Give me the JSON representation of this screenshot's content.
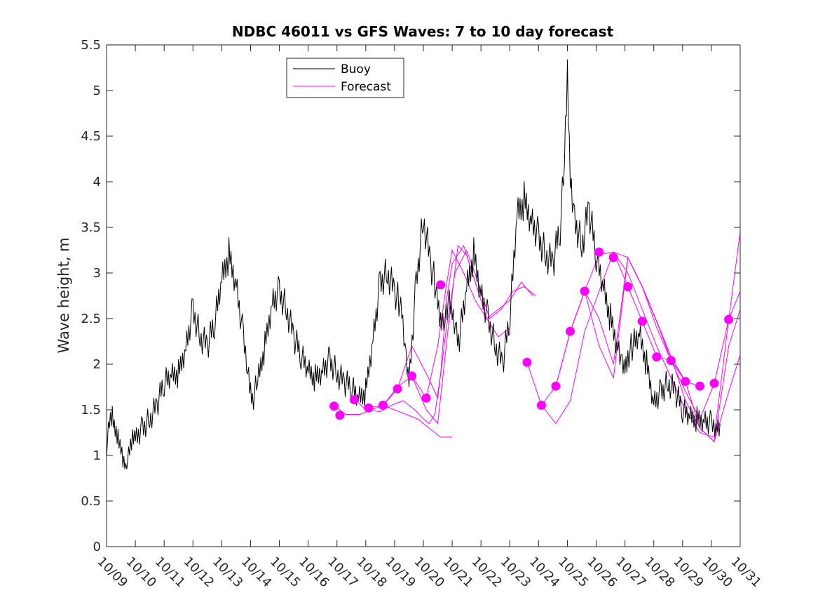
{
  "chart_data": {
    "type": "line",
    "title": "NDBC 46011 vs GFS Waves: 7 to 10 day forecast",
    "xlabel": "",
    "ylabel": "Wave height, m",
    "x_unit": "days since 10/09",
    "xlim": [
      0,
      22
    ],
    "ylim": [
      0,
      5.5
    ],
    "x_tick_labels": [
      "10/09",
      "10/10",
      "10/11",
      "10/12",
      "10/13",
      "10/14",
      "10/15",
      "10/16",
      "10/17",
      "10/18",
      "10/19",
      "10/20",
      "10/21",
      "10/22",
      "10/23",
      "10/24",
      "10/25",
      "10/26",
      "10/27",
      "10/28",
      "10/29",
      "10/30",
      "10/31"
    ],
    "y_ticks": [
      0,
      0.5,
      1,
      1.5,
      2,
      2.5,
      3,
      3.5,
      4,
      4.5,
      5,
      5.5
    ],
    "y_tick_labels": [
      "0",
      "0.5",
      "1",
      "1.5",
      "2",
      "2.5",
      "3",
      "3.5",
      "4",
      "4.5",
      "5",
      "5.5"
    ],
    "legend": {
      "location": "top-left",
      "entries": [
        "Buoy",
        "Forecast"
      ]
    },
    "colors": {
      "buoy": "#000000",
      "forecast": "#ff00ff"
    },
    "series": [
      {
        "name": "Buoy",
        "x": [
          0,
          0.1,
          0.2,
          0.3,
          0.4,
          0.5,
          0.6,
          0.7,
          0.8,
          0.9,
          1.0,
          1.25,
          1.5,
          1.75,
          2.0,
          2.25,
          2.5,
          2.75,
          3.0,
          3.25,
          3.5,
          3.75,
          4.0,
          4.25,
          4.5,
          4.75,
          4.9,
          5.0,
          5.1,
          5.25,
          5.5,
          5.75,
          6.0,
          6.25,
          6.5,
          6.75,
          7.0,
          7.25,
          7.5,
          7.75,
          8.0,
          8.25,
          8.5,
          8.75,
          9.0,
          9.25,
          9.5,
          9.75,
          10.0,
          10.15,
          10.25,
          10.4,
          10.5,
          10.75,
          11.0,
          11.25,
          11.4,
          11.5,
          11.6,
          11.75,
          11.9,
          12.0,
          12.15,
          12.25,
          12.5,
          12.75,
          13.0,
          13.25,
          13.5,
          13.75,
          14.0,
          14.25,
          14.5,
          14.75,
          15.0,
          15.25,
          15.5,
          15.75,
          15.9,
          16.0,
          16.1,
          16.25,
          16.5,
          16.75,
          17.0,
          17.25,
          17.5,
          17.75,
          17.9,
          18.0,
          18.1,
          18.25,
          18.5,
          18.75,
          19.0,
          19.25,
          19.5,
          19.75,
          20.0,
          20.25,
          20.5,
          20.75,
          21.0,
          21.2,
          21.3
        ],
        "y": [
          1.1,
          1.3,
          1.4,
          1.25,
          1.2,
          1.1,
          0.95,
          0.9,
          1.0,
          1.15,
          1.2,
          1.3,
          1.4,
          1.55,
          1.8,
          1.85,
          1.9,
          2.2,
          2.6,
          2.3,
          2.2,
          2.45,
          2.9,
          3.2,
          2.9,
          2.3,
          2.0,
          1.75,
          1.65,
          1.8,
          2.2,
          2.7,
          2.8,
          2.6,
          2.3,
          2.1,
          1.9,
          1.85,
          1.95,
          2.05,
          1.9,
          1.8,
          1.75,
          1.6,
          1.7,
          2.3,
          2.9,
          3.0,
          2.8,
          2.7,
          2.5,
          2.0,
          1.8,
          2.9,
          3.6,
          3.1,
          2.9,
          2.6,
          2.4,
          2.5,
          2.7,
          2.6,
          2.4,
          2.3,
          2.8,
          3.2,
          2.8,
          2.5,
          2.2,
          2.0,
          2.5,
          3.6,
          3.8,
          3.6,
          3.4,
          3.2,
          3.1,
          3.5,
          4.2,
          5.1,
          4.0,
          3.6,
          3.3,
          3.7,
          3.2,
          2.8,
          2.5,
          2.2,
          2.0,
          2.0,
          2.1,
          2.2,
          2.3,
          2.0,
          1.6,
          1.7,
          1.8,
          1.7,
          1.5,
          1.4,
          1.4,
          1.4,
          1.35,
          1.35,
          1.35
        ]
      },
      {
        "name": "Forecast",
        "x": [
          7.9,
          8.3,
          8.8,
          9.2,
          9.6,
          10.0,
          10.4,
          10.8,
          11.2,
          11.6,
          12.0
        ],
        "y": [
          1.55,
          1.45,
          1.45,
          1.5,
          1.55,
          1.5,
          1.45,
          1.4,
          1.3,
          1.2,
          1.2
        ]
      },
      {
        "name": "Forecast",
        "x": [
          8.6,
          9.0,
          9.5,
          9.9,
          10.3,
          10.7,
          11.0,
          11.2,
          11.4,
          11.6,
          11.8,
          12.0,
          12.2,
          12.4,
          12.6,
          12.8,
          13.0
        ],
        "y": [
          1.62,
          1.5,
          1.48,
          1.55,
          1.6,
          1.5,
          1.4,
          1.35,
          1.45,
          1.9,
          2.7,
          3.1,
          3.2,
          3.3,
          3.1,
          2.9,
          2.7
        ]
      },
      {
        "name": "Forecast",
        "x": [
          9.1,
          9.6,
          10.1,
          10.6,
          11.1,
          11.5,
          11.9,
          12.2,
          12.5,
          12.8,
          13.2,
          13.6,
          14.0
        ],
        "y": [
          1.52,
          1.55,
          1.75,
          1.87,
          1.5,
          1.35,
          2.5,
          3.3,
          3.2,
          2.9,
          2.5,
          2.3,
          2.4
        ]
      },
      {
        "name": "Forecast",
        "x": [
          9.6,
          10.1,
          10.6,
          11.1,
          11.5,
          11.8,
          12.1,
          12.5,
          12.9,
          13.3,
          13.7,
          14.1,
          14.5,
          14.9
        ],
        "y": [
          1.55,
          1.73,
          2.2,
          1.9,
          1.63,
          2.4,
          3.0,
          3.25,
          2.9,
          2.5,
          2.6,
          2.8,
          2.85,
          2.75
        ]
      },
      {
        "name": "Forecast",
        "x": [
          10.6,
          11.1,
          11.5,
          11.8,
          12.0,
          12.4,
          12.8,
          13.2,
          13.6,
          14.0,
          14.4,
          14.8
        ],
        "y": [
          1.87,
          1.63,
          2.2,
          2.87,
          3.25,
          3.0,
          2.7,
          2.5,
          2.6,
          2.7,
          2.9,
          2.75
        ]
      },
      {
        "name": "Forecast",
        "x": [
          14.6,
          15.1,
          15.6,
          16.1,
          16.6,
          17.1,
          17.6,
          18.1,
          18.6,
          19.1
        ],
        "y": [
          2.02,
          1.55,
          1.35,
          1.6,
          2.36,
          2.8,
          3.23,
          3.17,
          2.85,
          2.47
        ]
      },
      {
        "name": "Forecast",
        "x": [
          15.1,
          15.6,
          16.1,
          16.6,
          17.1,
          17.6,
          18.1,
          18.6,
          19.1,
          19.6
        ],
        "y": [
          1.55,
          1.76,
          2.36,
          2.8,
          3.2,
          3.23,
          2.85,
          2.47,
          2.08,
          2.04
        ]
      },
      {
        "name": "Forecast",
        "x": [
          15.6,
          16.1,
          16.6,
          17.1,
          17.6,
          18.1,
          18.6,
          19.1,
          19.6,
          20.1
        ],
        "y": [
          1.76,
          2.36,
          2.8,
          2.5,
          2.0,
          3.17,
          2.85,
          2.47,
          2.08,
          1.8
        ]
      },
      {
        "name": "Forecast",
        "x": [
          16.1,
          16.6,
          17.1,
          17.6,
          18.1,
          18.6,
          19.1,
          19.6,
          20.1,
          20.6
        ],
        "y": [
          2.36,
          2.8,
          2.2,
          1.85,
          3.17,
          2.85,
          2.47,
          2.04,
          1.81,
          1.76
        ]
      },
      {
        "name": "Forecast",
        "x": [
          17.6,
          18.1,
          18.6,
          19.1,
          19.6,
          20.1,
          20.6,
          21.1,
          21.6,
          22.0
        ],
        "y": [
          3.23,
          3.0,
          2.6,
          2.2,
          1.85,
          1.5,
          1.25,
          1.2,
          2.49,
          3.45
        ]
      },
      {
        "name": "Forecast",
        "x": [
          18.1,
          18.6,
          19.1,
          19.6,
          20.1,
          20.6,
          21.1,
          21.6,
          22.0
        ],
        "y": [
          3.17,
          2.85,
          2.4,
          2.04,
          1.7,
          1.4,
          1.79,
          2.49,
          2.8
        ]
      },
      {
        "name": "Forecast",
        "x": [
          18.6,
          19.1,
          19.6,
          20.1,
          20.6,
          21.1,
          21.6,
          22.0
        ],
        "y": [
          2.85,
          2.47,
          2.08,
          1.81,
          1.3,
          1.15,
          2.2,
          2.6
        ]
      },
      {
        "name": "Forecast",
        "x": [
          19.1,
          19.6,
          20.1,
          20.6,
          21.1,
          21.6,
          22.0
        ],
        "y": [
          2.47,
          2.08,
          1.6,
          1.3,
          1.15,
          1.7,
          2.1
        ]
      }
    ],
    "markers": {
      "name": "Forecast",
      "x": [
        7.9,
        8.1,
        8.6,
        9.1,
        9.6,
        10.1,
        10.6,
        11.1,
        11.6,
        14.6,
        15.1,
        15.6,
        16.1,
        16.6,
        17.1,
        17.6,
        18.1,
        18.6,
        19.1,
        19.6,
        20.1,
        20.6,
        21.1,
        21.6
      ],
      "y": [
        1.54,
        1.44,
        1.61,
        1.52,
        1.55,
        1.73,
        1.87,
        1.63,
        2.87,
        2.02,
        1.55,
        1.76,
        2.36,
        2.8,
        3.23,
        3.17,
        2.85,
        2.47,
        2.08,
        2.04,
        1.81,
        1.76,
        1.79,
        2.49
      ]
    }
  }
}
